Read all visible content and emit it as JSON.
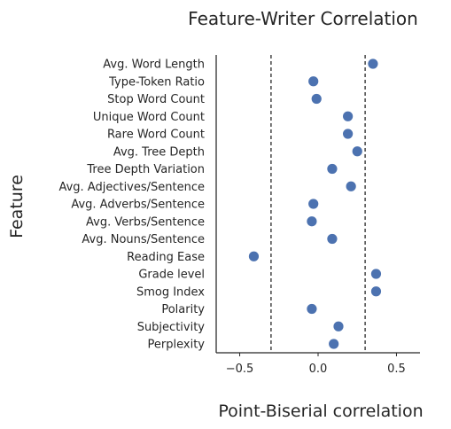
{
  "chart_data": {
    "type": "scatter",
    "title": "Feature-Writer Correlation",
    "xlabel": "Point-Biserial correlation",
    "ylabel": "Feature",
    "xlim": [
      -0.65,
      0.65
    ],
    "xticks": [
      -0.5,
      0.0,
      0.5
    ],
    "xtick_labels": [
      "−0.5",
      "0.0",
      "0.5"
    ],
    "reference_lines_x": [
      -0.3,
      0.3
    ],
    "reference_line_style": "dashed",
    "grid": false,
    "marker_color": "#4c72b0",
    "categories": [
      "Avg. Word Length",
      "Type-Token Ratio",
      "Stop Word Count",
      "Unique Word Count",
      "Rare Word Count",
      "Avg. Tree Depth",
      "Tree Depth Variation",
      "Avg. Adjectives/Sentence",
      "Avg. Adverbs/Sentence",
      "Avg. Verbs/Sentence",
      "Avg. Nouns/Sentence",
      "Reading Ease",
      "Grade level",
      "Smog Index",
      "Polarity",
      "Subjectivity",
      "Perplexity"
    ],
    "values": [
      0.35,
      -0.03,
      -0.01,
      0.19,
      0.19,
      0.25,
      0.09,
      0.21,
      -0.03,
      -0.04,
      0.09,
      -0.41,
      0.37,
      0.37,
      -0.04,
      0.13,
      0.1
    ]
  }
}
